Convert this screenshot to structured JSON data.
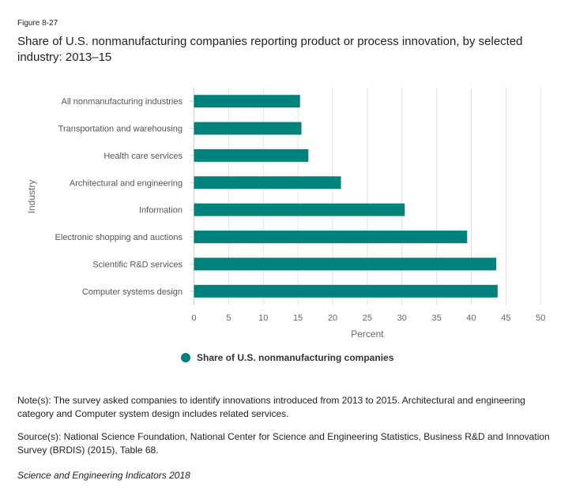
{
  "figure_label": "Figure 8-27",
  "title": "Share of U.S. nonmanufacturing companies reporting product or process innovation, by selected industry: 2013–15",
  "chart_data": {
    "type": "bar",
    "orientation": "horizontal",
    "categories": [
      "All nonmanufacturing industries",
      "Transportation and warehousing",
      "Health care services",
      "Architectural and engineering",
      "Information",
      "Electronic shopping and auctions",
      "Scientific R&D services",
      "Computer systems design"
    ],
    "series": [
      {
        "name": "Share of U.S. nonmanufacturing companies",
        "values": [
          15.3,
          15.5,
          16.5,
          21.2,
          30.4,
          39.4,
          43.6,
          43.8
        ],
        "color": "#00827C"
      }
    ],
    "xlabel": "Percent",
    "ylabel": "Industry",
    "xlim": [
      0,
      50
    ],
    "xticks": [
      "0",
      "5",
      "10",
      "15",
      "20",
      "25",
      "30",
      "35",
      "40",
      "45",
      "50"
    ],
    "grid": true,
    "legend_position": "bottom"
  },
  "note": "Note(s): The survey asked companies to identify innovations introduced from 2013 to 2015. Architectural and engineering category and Computer system design includes related services.",
  "source": "Source(s): National Science Foundation, National Center for Science and Engineering Statistics, Business R&D and Innovation Survey (BRDIS) (2015), Table 68.",
  "publication": "Science and Engineering Indicators 2018"
}
